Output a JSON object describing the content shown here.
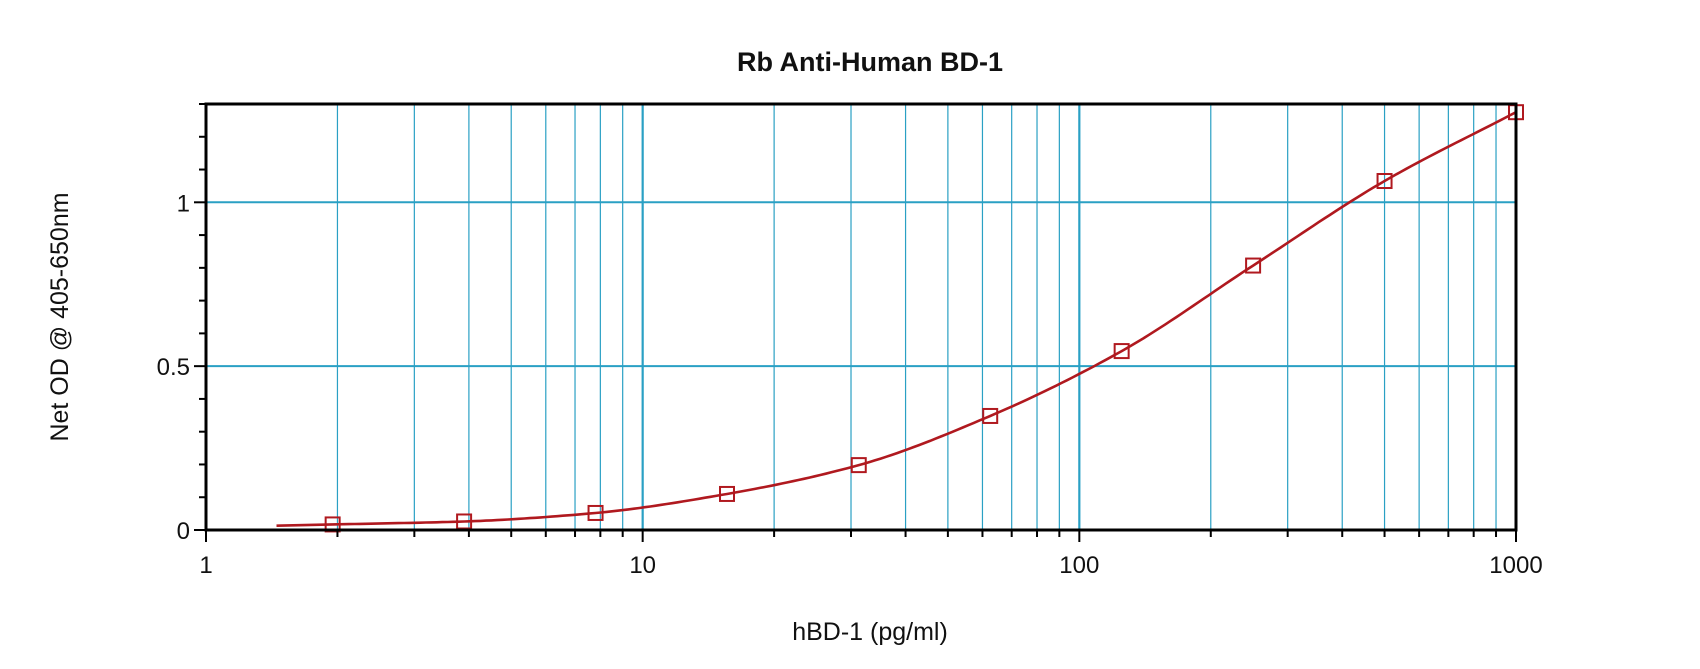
{
  "chart_data": {
    "type": "scatter",
    "title": "Rb Anti-Human BD-1",
    "xlabel": "hBD-1 (pg/ml)",
    "ylabel": "Net OD @ 405-650nm",
    "x_scale": "log",
    "xlim": [
      1,
      1000
    ],
    "ylim": [
      0,
      1.3
    ],
    "x_ticks": [
      "1",
      "10",
      "100",
      "1000"
    ],
    "y_ticks": [
      "0",
      "0.5",
      "1"
    ],
    "grid": true,
    "series": [
      {
        "x": [
          1.95,
          3.9,
          7.8,
          15.6,
          31.25,
          62.5,
          125,
          250,
          500,
          1000
        ],
        "y": [
          0.017,
          0.026,
          0.052,
          0.11,
          0.198,
          0.348,
          0.546,
          0.807,
          1.065,
          1.275
        ],
        "fit_curve": true,
        "marker": "square",
        "color": "#b0191f"
      }
    ],
    "colors": {
      "grid": "#2aa0c4",
      "series": "#b0191f",
      "frame": "#000000"
    }
  }
}
